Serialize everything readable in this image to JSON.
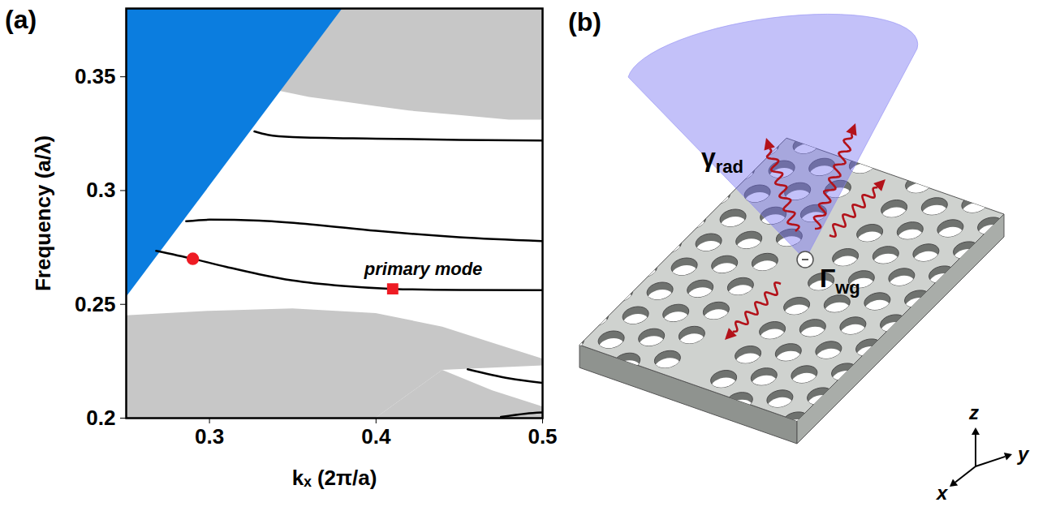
{
  "chart_data": {
    "type": "line",
    "title": "(a)",
    "xlabel": "kₓ (2π/a)",
    "ylabel": "Frequency (a/λ)",
    "xlim": [
      0.25,
      0.5
    ],
    "ylim": [
      0.2,
      0.38
    ],
    "xticks": [
      0.3,
      0.4,
      0.5
    ],
    "yticks": [
      0.2,
      0.25,
      0.3,
      0.35
    ],
    "grid": false,
    "series": [
      {
        "type": "area",
        "color": "#c7c7c7",
        "x": [
          0.33,
          0.34,
          0.36,
          0.38,
          0.4,
          0.42,
          0.45,
          0.48,
          0.5
        ],
        "lower": [
          0.347,
          0.344,
          0.341,
          0.339,
          0.337,
          0.335,
          0.333,
          0.331,
          0.331
        ],
        "values": [
          0.38,
          0.38,
          0.38,
          0.38,
          0.38,
          0.38,
          0.38,
          0.38,
          0.38
        ]
      },
      {
        "type": "area",
        "color": "#c7c7c7",
        "x": [
          0.25,
          0.3,
          0.35,
          0.4,
          0.44,
          0.47,
          0.5
        ],
        "lower": [
          0.2,
          0.2,
          0.2,
          0.2,
          0.221,
          0.222,
          0.223
        ],
        "values": [
          0.245,
          0.247,
          0.248,
          0.246,
          0.24,
          0.233,
          0.226
        ]
      },
      {
        "type": "area",
        "color": "#c7c7c7",
        "x": [
          0.4,
          0.44,
          0.47,
          0.5
        ],
        "lower": [
          0.2,
          0.2,
          0.2,
          0.2
        ],
        "values": [
          0.2,
          0.221,
          0.212,
          0.205
        ]
      },
      {
        "type": "area",
        "color": "#0b7ddf",
        "x": [
          0.25,
          0.38
        ],
        "lower": [
          0.253,
          0.38
        ],
        "values": [
          0.38,
          0.38
        ]
      },
      {
        "type": "line",
        "color": "#000000",
        "x": [
          0.327,
          0.335,
          0.35,
          0.4,
          0.45,
          0.5
        ],
        "values": [
          0.326,
          0.3245,
          0.3235,
          0.3228,
          0.3223,
          0.322
        ]
      },
      {
        "type": "line",
        "color": "#000000",
        "x": [
          0.286,
          0.3,
          0.33,
          0.36,
          0.4,
          0.45,
          0.5
        ],
        "values": [
          0.2865,
          0.2872,
          0.2868,
          0.2852,
          0.2823,
          0.2795,
          0.2778
        ]
      },
      {
        "type": "line",
        "color": "#000000",
        "x": [
          0.268,
          0.29,
          0.31,
          0.33,
          0.35,
          0.38,
          0.41,
          0.45,
          0.5
        ],
        "values": [
          0.2735,
          0.27,
          0.2665,
          0.2632,
          0.2605,
          0.2581,
          0.2568,
          0.2563,
          0.2562
        ]
      },
      {
        "type": "line",
        "color": "#000000",
        "x": [
          0.455,
          0.48,
          0.5
        ],
        "values": [
          0.2215,
          0.2175,
          0.2155
        ]
      },
      {
        "type": "line",
        "color": "#000000",
        "x": [
          0.475,
          0.49,
          0.5
        ],
        "values": [
          0.2005,
          0.202,
          0.2025
        ]
      },
      {
        "type": "scatter",
        "marker": "circle",
        "color": "#ee1c24",
        "x": [
          0.29
        ],
        "values": [
          0.27
        ]
      },
      {
        "type": "scatter",
        "marker": "square",
        "color": "#ee1c24",
        "x": [
          0.41
        ],
        "values": [
          0.2568
        ]
      }
    ],
    "annotations": [
      {
        "text": "primary mode",
        "x": 0.41,
        "y": 0.2568
      }
    ]
  },
  "diagram": {
    "title": "(b)",
    "labels": [
      {
        "text": "γ",
        "subscript": "rad"
      },
      {
        "text": "Γ",
        "subscript": "wg"
      }
    ],
    "axes": [
      "x",
      "y",
      "z"
    ]
  }
}
